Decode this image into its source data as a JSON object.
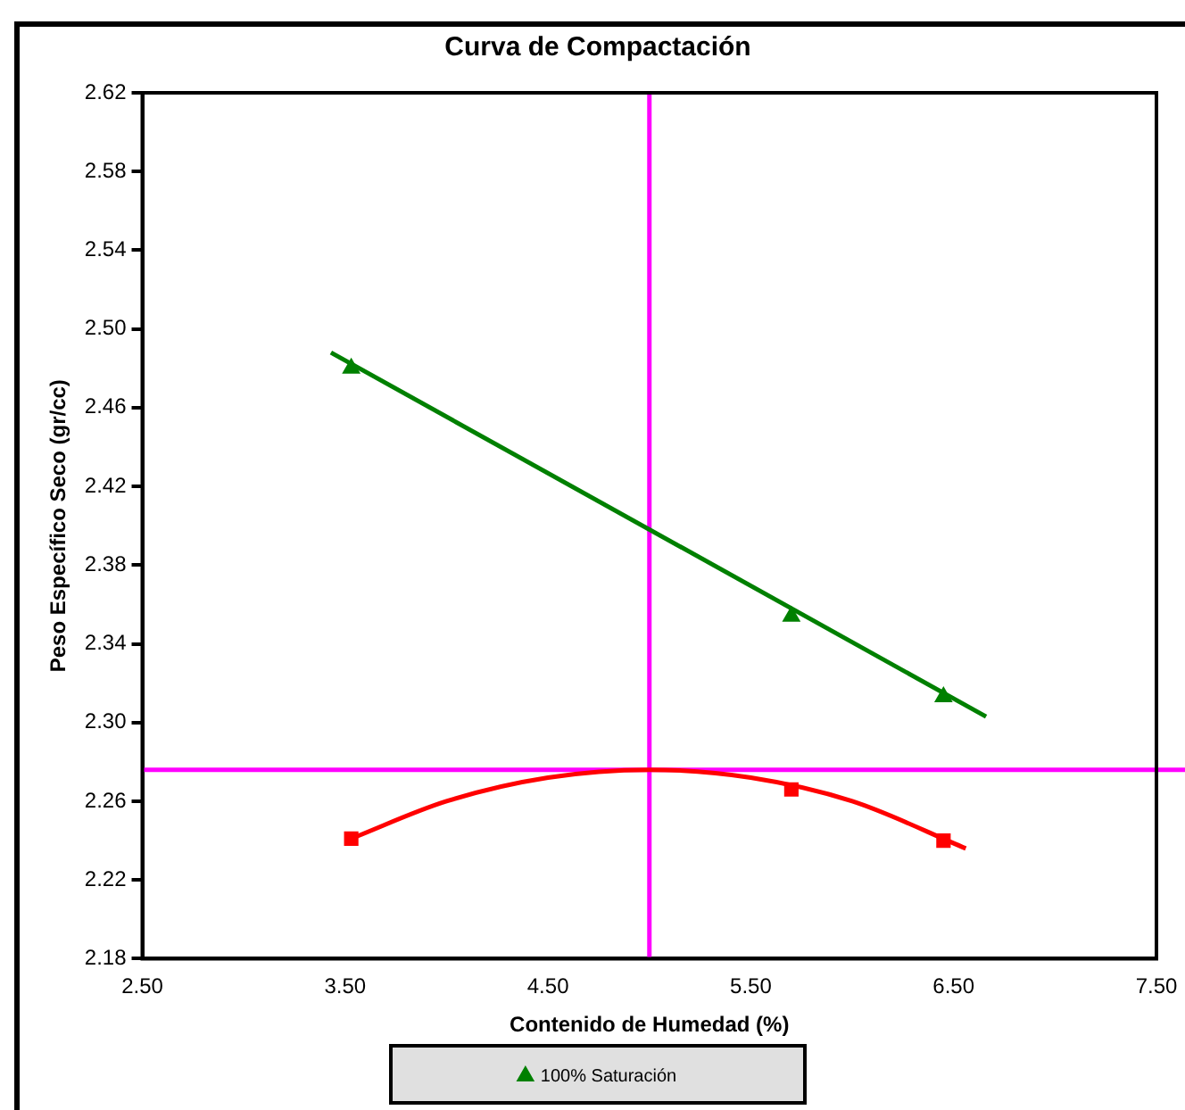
{
  "chart_data": {
    "type": "scatter",
    "title": "Curva de Compactación",
    "xlabel": "Contenido de Humedad (%)",
    "ylabel": "Peso Específico Seco (gr/cc)",
    "xlim": [
      2.5,
      7.5
    ],
    "xticks": [
      {
        "value": 2.5,
        "label": "2.50"
      },
      {
        "value": 3.5,
        "label": "3.50"
      },
      {
        "value": 4.5,
        "label": "4.50"
      },
      {
        "value": 5.5,
        "label": "5.50"
      },
      {
        "value": 6.5,
        "label": "6.50"
      },
      {
        "value": 7.5,
        "label": "7.50"
      }
    ],
    "ylim": [
      2.18,
      2.62
    ],
    "yticks": [
      2.18,
      2.22,
      2.26,
      {
        "value": 2.3,
        "label": "2.30"
      },
      2.34,
      2.38,
      2.42,
      2.46,
      {
        "value": 2.5,
        "label": "2.50"
      },
      2.54,
      2.58,
      2.62
    ],
    "grid": false,
    "legend": "bottom",
    "series": [
      {
        "name": "100% Saturación",
        "type": "scatter",
        "marker": "triangle",
        "color": "#008000",
        "x": [
          3.53,
          5.7,
          6.45
        ],
        "values": [
          2.48,
          2.354,
          2.313
        ]
      },
      {
        "type": "line",
        "marker": "none",
        "color": "#008000",
        "x": [
          3.43,
          6.66
        ],
        "values": [
          2.488,
          2.303
        ]
      },
      {
        "type": "scatter",
        "marker": "square",
        "color": "#ff0000",
        "x": [
          3.53,
          5.7,
          6.45
        ],
        "values": [
          2.241,
          2.266,
          2.24
        ]
      },
      {
        "type": "line",
        "marker": "none",
        "color": "#ff0000",
        "x": [
          3.53,
          4.0,
          4.5,
          5.0,
          5.5,
          6.0,
          6.56
        ],
        "values": [
          2.241,
          2.26,
          2.272,
          2.276,
          2.272,
          2.26,
          2.236
        ]
      }
    ],
    "ref_lines": [
      {
        "axis": "x",
        "value": 5.0,
        "color": "#ff00ff"
      },
      {
        "axis": "y",
        "value": 2.276,
        "color": "#ff00ff"
      }
    ]
  }
}
